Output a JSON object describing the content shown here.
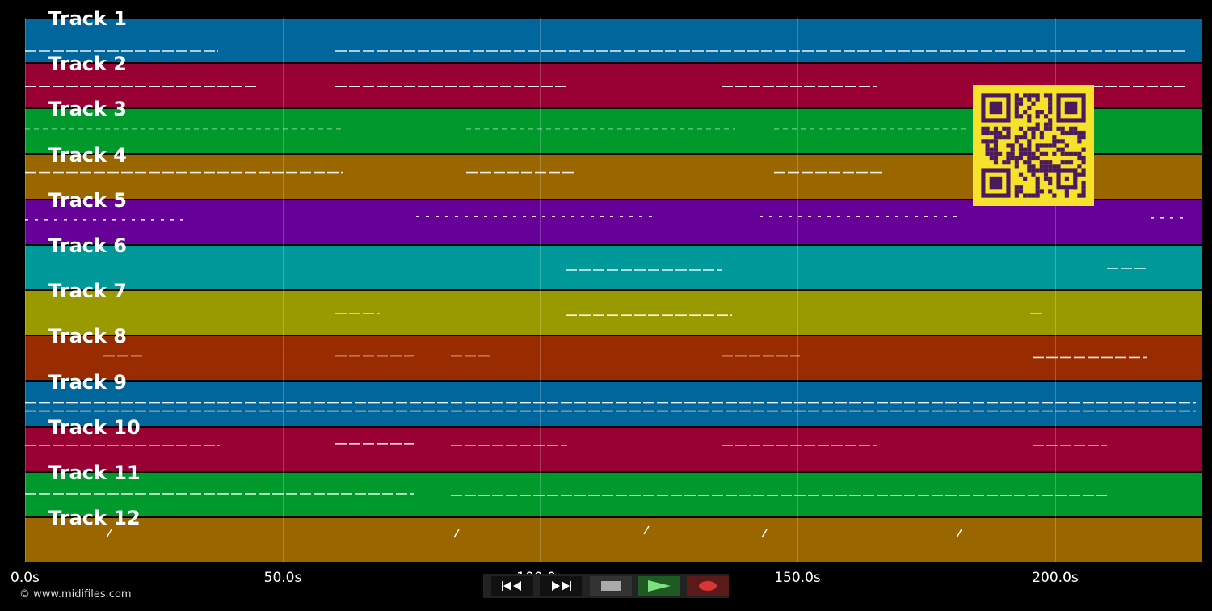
{
  "tracks": [
    {
      "name": "Track 1",
      "color": "#00669b"
    },
    {
      "name": "Track 2",
      "color": "#990033"
    },
    {
      "name": "Track 3",
      "color": "#00992b"
    },
    {
      "name": "Track 4",
      "color": "#996600"
    },
    {
      "name": "Track 5",
      "color": "#660099"
    },
    {
      "name": "Track 6",
      "color": "#009999"
    },
    {
      "name": "Track 7",
      "color": "#999900"
    },
    {
      "name": "Track 8",
      "color": "#992b00"
    },
    {
      "name": "Track 9",
      "color": "#00669b"
    },
    {
      "name": "Track 10",
      "color": "#990033"
    },
    {
      "name": "Track 11",
      "color": "#00992b"
    },
    {
      "name": "Track 12",
      "color": "#996600"
    }
  ],
  "timeline": {
    "max_seconds": 229,
    "ticks": [
      {
        "seconds": 0,
        "label": "0.0s"
      },
      {
        "seconds": 50,
        "label": "50.0s"
      },
      {
        "seconds": 100,
        "label": "100.0s"
      },
      {
        "seconds": 150,
        "label": "150.0s"
      },
      {
        "seconds": 200,
        "label": "200.0s"
      }
    ]
  },
  "qr_code": {
    "foreground": "#4a1b5c",
    "background": "#f7e22b",
    "icon": "qr-code-icon"
  },
  "transport": {
    "buttons": [
      {
        "name": "rewind-button",
        "icon": "rewind-icon"
      },
      {
        "name": "fast-forward-button",
        "icon": "fast-forward-icon"
      },
      {
        "name": "stop-button",
        "icon": "stop-icon"
      },
      {
        "name": "play-button",
        "icon": "play-icon"
      },
      {
        "name": "record-button",
        "icon": "record-icon"
      }
    ]
  },
  "footer": {
    "copyright": "© www.midifiles.com"
  }
}
